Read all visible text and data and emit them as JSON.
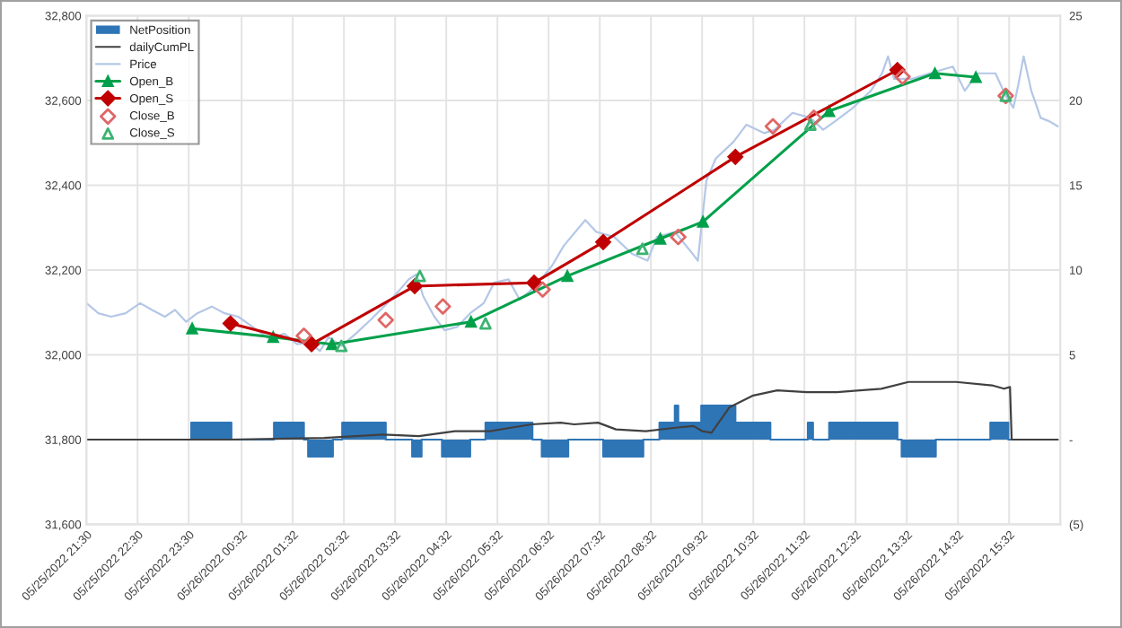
{
  "chart_data": {
    "type": "line",
    "xlim": [
      "2022-05-25T21:30",
      "2022-05-26T16:32"
    ],
    "xticks": [
      {
        "value": "2022-05-25T21:30",
        "label": "05/25/2022 21:30"
      },
      {
        "value": "2022-05-25T22:30",
        "label": "05/25/2022 22:30"
      },
      {
        "value": "2022-05-25T23:30",
        "label": "05/25/2022 23:30"
      },
      {
        "value": "2022-05-26T00:32",
        "label": "05/26/2022 00:32"
      },
      {
        "value": "2022-05-26T01:32",
        "label": "05/26/2022 01:32"
      },
      {
        "value": "2022-05-26T02:32",
        "label": "05/26/2022 02:32"
      },
      {
        "value": "2022-05-26T03:32",
        "label": "05/26/2022 03:32"
      },
      {
        "value": "2022-05-26T04:32",
        "label": "05/26/2022 04:32"
      },
      {
        "value": "2022-05-26T05:32",
        "label": "05/26/2022 05:32"
      },
      {
        "value": "2022-05-26T06:32",
        "label": "05/26/2022 06:32"
      },
      {
        "value": "2022-05-26T07:32",
        "label": "05/26/2022 07:32"
      },
      {
        "value": "2022-05-26T08:32",
        "label": "05/26/2022 08:32"
      },
      {
        "value": "2022-05-26T09:32",
        "label": "05/26/2022 09:32"
      },
      {
        "value": "2022-05-26T10:32",
        "label": "05/26/2022 10:32"
      },
      {
        "value": "2022-05-26T11:32",
        "label": "05/26/2022 11:32"
      },
      {
        "value": "2022-05-26T12:32",
        "label": "05/26/2022 12:32"
      },
      {
        "value": "2022-05-26T13:32",
        "label": "05/26/2022 13:32"
      },
      {
        "value": "2022-05-26T14:32",
        "label": "05/26/2022 14:32"
      },
      {
        "value": "2022-05-26T15:32",
        "label": "05/26/2022 15:32"
      }
    ],
    "ylim": [
      31600,
      32800
    ],
    "yticks": [
      {
        "value": 31600,
        "label": "31,600"
      },
      {
        "value": 31800,
        "label": "31,800"
      },
      {
        "value": 32000,
        "label": "32,000"
      },
      {
        "value": 32200,
        "label": "32,200"
      },
      {
        "value": 32400,
        "label": "32,400"
      },
      {
        "value": 32600,
        "label": "32,600"
      },
      {
        "value": 32800,
        "label": "32,800"
      }
    ],
    "y2lim": [
      -5,
      25
    ],
    "y2ticks": [
      {
        "value": -5,
        "label": "(5)"
      },
      {
        "value": 0,
        "label": "-"
      },
      5,
      10,
      15,
      20,
      25
    ],
    "grid": true,
    "legend": "top left",
    "series": [
      {
        "name": "NetPosition",
        "type": "area",
        "axis": "y2",
        "color": "#2e75b6",
        "x": [
          "2022-05-25T21:30",
          "2022-05-25T23:33",
          "2022-05-25T23:33",
          "2022-05-26T00:20",
          "2022-05-26T00:20",
          "2022-05-26T01:10",
          "2022-05-26T01:10",
          "2022-05-26T01:45",
          "2022-05-26T01:45",
          "2022-05-26T01:50",
          "2022-05-26T01:50",
          "2022-05-26T02:19",
          "2022-05-26T02:19",
          "2022-05-26T02:30",
          "2022-05-26T02:30",
          "2022-05-26T03:21",
          "2022-05-26T03:21",
          "2022-05-26T03:52",
          "2022-05-26T03:52",
          "2022-05-26T04:03",
          "2022-05-26T04:03",
          "2022-05-26T04:27",
          "2022-05-26T04:27",
          "2022-05-26T05:00",
          "2022-05-26T05:00",
          "2022-05-26T05:18",
          "2022-05-26T05:18",
          "2022-05-26T06:13",
          "2022-05-26T06:13",
          "2022-05-26T06:24",
          "2022-05-26T06:24",
          "2022-05-26T06:55",
          "2022-05-26T06:55",
          "2022-05-26T07:36",
          "2022-05-26T07:36",
          "2022-05-26T08:23",
          "2022-05-26T08:23",
          "2022-05-26T08:42",
          "2022-05-26T08:42",
          "2022-05-26T09:00",
          "2022-05-26T09:00",
          "2022-05-26T09:04",
          "2022-05-26T09:04",
          "2022-05-26T09:31",
          "2022-05-26T09:31",
          "2022-05-26T10:11",
          "2022-05-26T10:11",
          "2022-05-26T10:52",
          "2022-05-26T10:52",
          "2022-05-26T11:36",
          "2022-05-26T11:36",
          "2022-05-26T11:42",
          "2022-05-26T11:42",
          "2022-05-26T12:01",
          "2022-05-26T12:01",
          "2022-05-26T13:21",
          "2022-05-26T13:21",
          "2022-05-26T13:26",
          "2022-05-26T13:26",
          "2022-05-26T14:06",
          "2022-05-26T14:06",
          "2022-05-26T15:10",
          "2022-05-26T15:10",
          "2022-05-26T15:31",
          "2022-05-26T15:31",
          "2022-05-26T16:28"
        ],
        "values": [
          0,
          0,
          1,
          1,
          0,
          0,
          1,
          1,
          0,
          0,
          -1,
          -1,
          0,
          0,
          1,
          1,
          0,
          0,
          -1,
          -1,
          0,
          0,
          -1,
          -1,
          0,
          0,
          1,
          1,
          0,
          0,
          -1,
          -1,
          0,
          0,
          -1,
          -1,
          0,
          0,
          1,
          1,
          2,
          2,
          1,
          1,
          2,
          2,
          1,
          1,
          0,
          0,
          1,
          1,
          0,
          0,
          1,
          1,
          0,
          0,
          -1,
          -1,
          0,
          0,
          1,
          1,
          0,
          0
        ]
      },
      {
        "name": "dailyCumPL",
        "type": "line",
        "axis": "y2",
        "color": "#404040",
        "marker": "none",
        "x": [
          "2022-05-25T21:30",
          "2022-05-25T23:32",
          "2022-05-26T00:16",
          "2022-05-26T02:09",
          "2022-05-26T03:18",
          "2022-05-26T04:00",
          "2022-05-26T04:42",
          "2022-05-26T05:23",
          "2022-05-26T06:12",
          "2022-05-26T06:46",
          "2022-05-26T07:02",
          "2022-05-26T07:30",
          "2022-05-26T07:51",
          "2022-05-26T08:26",
          "2022-05-26T09:01",
          "2022-05-26T09:22",
          "2022-05-26T09:32",
          "2022-05-26T09:43",
          "2022-05-26T10:04",
          "2022-05-26T10:32",
          "2022-05-26T11:00",
          "2022-05-26T11:35",
          "2022-05-26T12:10",
          "2022-05-26T12:37",
          "2022-05-26T13:02",
          "2022-05-26T13:34",
          "2022-05-26T14:30",
          "2022-05-26T15:12",
          "2022-05-26T15:26",
          "2022-05-26T15:33",
          "2022-05-26T15:35",
          "2022-05-26T16:29"
        ],
        "values": [
          0,
          0,
          0,
          0.1,
          0.3,
          0.2,
          0.5,
          0.5,
          0.9,
          1.0,
          0.9,
          1.0,
          0.6,
          0.5,
          0.7,
          0.8,
          0.5,
          0.4,
          1.9,
          2.6,
          2.9,
          2.8,
          2.8,
          2.9,
          3.0,
          3.4,
          3.4,
          3.2,
          3.0,
          3.1,
          0,
          0
        ]
      },
      {
        "name": "Price",
        "color": "#b4c7e7",
        "marker": "none",
        "x": [
          "2022-05-25T21:30",
          "2022-05-25T21:44",
          "2022-05-25T21:59",
          "2022-05-25T22:16",
          "2022-05-25T22:33",
          "2022-05-25T22:47",
          "2022-05-25T23:02",
          "2022-05-25T23:14",
          "2022-05-25T23:27",
          "2022-05-25T23:40",
          "2022-05-25T23:57",
          "2022-05-26T00:12",
          "2022-05-26T00:28",
          "2022-05-26T00:45",
          "2022-05-26T01:05",
          "2022-05-26T01:22",
          "2022-05-26T01:37",
          "2022-05-26T01:51",
          "2022-05-26T02:04",
          "2022-05-26T02:14",
          "2022-05-26T02:29",
          "2022-05-26T02:46",
          "2022-05-26T03:03",
          "2022-05-26T03:21",
          "2022-05-26T03:36",
          "2022-05-26T03:48",
          "2022-05-26T03:57",
          "2022-05-26T04:05",
          "2022-05-26T04:18",
          "2022-05-26T04:30",
          "2022-05-26T04:45",
          "2022-05-26T05:00",
          "2022-05-26T05:16",
          "2022-05-26T05:28",
          "2022-05-26T05:45",
          "2022-05-26T05:58",
          "2022-05-26T06:10",
          "2022-05-26T06:23",
          "2022-05-26T06:36",
          "2022-05-26T06:50",
          "2022-05-26T07:15",
          "2022-05-26T07:28",
          "2022-05-26T07:49",
          "2022-05-26T08:10",
          "2022-05-26T08:28",
          "2022-05-26T08:39",
          "2022-05-26T09:00",
          "2022-05-26T09:21",
          "2022-05-26T09:27",
          "2022-05-26T09:37",
          "2022-05-26T09:48",
          "2022-05-26T10:09",
          "2022-05-26T10:24",
          "2022-05-26T10:45",
          "2022-05-26T10:57",
          "2022-05-26T11:18",
          "2022-05-26T11:39",
          "2022-05-26T11:54",
          "2022-05-26T12:08",
          "2022-05-26T12:29",
          "2022-05-26T12:50",
          "2022-05-26T13:03",
          "2022-05-26T13:10",
          "2022-05-26T13:17",
          "2022-05-26T13:38",
          "2022-05-26T13:59",
          "2022-05-26T14:26",
          "2022-05-26T14:40",
          "2022-05-26T14:55",
          "2022-05-26T15:16",
          "2022-05-26T15:28",
          "2022-05-26T15:37",
          "2022-05-26T15:43",
          "2022-05-26T15:49",
          "2022-05-26T15:58",
          "2022-05-26T16:09",
          "2022-05-26T16:19",
          "2022-05-26T16:29"
        ],
        "values": [
          32122,
          32098,
          32090,
          32098,
          32122,
          32106,
          32090,
          32106,
          32078,
          32098,
          32114,
          32098,
          32090,
          32066,
          32037,
          32050,
          32025,
          32029,
          32009,
          32042,
          32021,
          32050,
          32082,
          32118,
          32150,
          32178,
          32190,
          32138,
          32090,
          32058,
          32066,
          32098,
          32122,
          32170,
          32178,
          32130,
          32150,
          32178,
          32210,
          32258,
          32318,
          32290,
          32278,
          32238,
          32222,
          32278,
          32290,
          32238,
          32222,
          32411,
          32463,
          32503,
          32543,
          32523,
          32531,
          32571,
          32559,
          32531,
          32551,
          32583,
          32623,
          32664,
          32704,
          32651,
          32651,
          32664,
          32680,
          32623,
          32664,
          32664,
          32611,
          32583,
          32639,
          32704,
          32623,
          32559,
          32551,
          32539
        ]
      },
      {
        "name": "Open_B",
        "color": "#00a04a",
        "marker": "triangle",
        "x": [
          "2022-05-25T23:34",
          "2022-05-26T01:09",
          "2022-05-26T02:18",
          "2022-05-26T05:01",
          "2022-05-26T06:54",
          "2022-05-26T08:43",
          "2022-05-26T09:33",
          "2022-05-26T12:01",
          "2022-05-26T14:05",
          "2022-05-26T14:53"
        ],
        "values": [
          32062,
          32042,
          32025,
          32078,
          32186,
          32274,
          32314,
          32575,
          32664,
          32655
        ]
      },
      {
        "name": "Open_S",
        "color": "#c00000",
        "marker": "diamond",
        "x": [
          "2022-05-26T00:19",
          "2022-05-26T01:54",
          "2022-05-26T03:55",
          "2022-05-26T06:15",
          "2022-05-26T07:36",
          "2022-05-26T10:11",
          "2022-05-26T13:21"
        ],
        "values": [
          32074,
          32025,
          32162,
          32170,
          32266,
          32467,
          32672
        ]
      },
      {
        "name": "Close_B",
        "type": "scatter",
        "color": "#e06666",
        "marker": "diamond",
        "x": [
          "2022-05-26T01:45",
          "2022-05-26T03:21",
          "2022-05-26T04:28",
          "2022-05-26T06:25",
          "2022-05-26T09:04",
          "2022-05-26T10:55",
          "2022-05-26T11:43",
          "2022-05-26T13:27",
          "2022-05-26T15:28"
        ],
        "values": [
          32045,
          32082,
          32114,
          32154,
          32278,
          32539,
          32559,
          32656,
          32611
        ]
      },
      {
        "name": "Close_S",
        "type": "scatter",
        "color": "#3cb371",
        "marker": "triangle",
        "x": [
          "2022-05-26T02:29",
          "2022-05-26T04:01",
          "2022-05-26T05:18",
          "2022-05-26T08:22",
          "2022-05-26T11:39",
          "2022-05-26T15:28"
        ],
        "values": [
          32021,
          32186,
          32074,
          32250,
          32543,
          32611
        ]
      }
    ]
  }
}
